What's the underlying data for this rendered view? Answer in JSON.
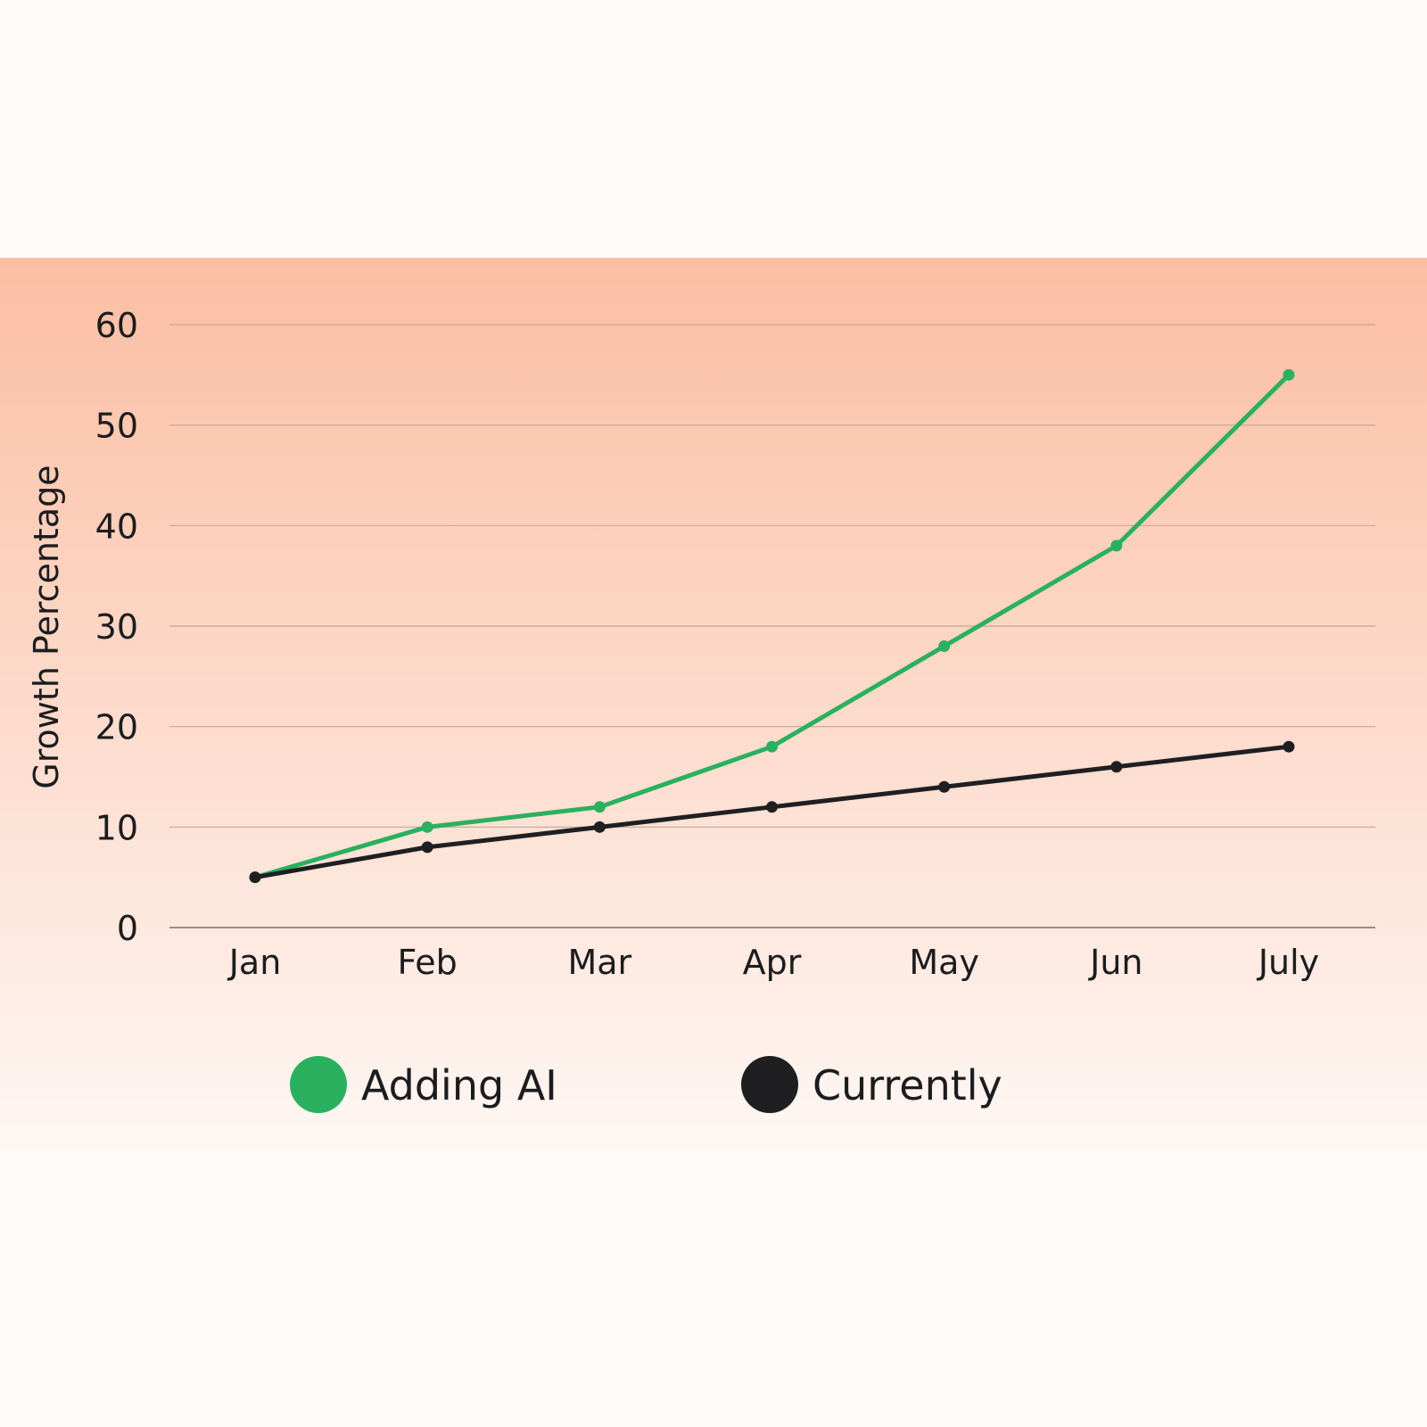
{
  "chart_data": {
    "type": "line",
    "categories": [
      "Jan",
      "Feb",
      "Mar",
      "Apr",
      "May",
      "Jun",
      "July"
    ],
    "series": [
      {
        "name": "Adding AI",
        "color": "#2bb05f",
        "values": [
          5,
          10,
          12,
          18,
          28,
          38,
          55
        ]
      },
      {
        "name": "Currently",
        "color": "#1f1f22",
        "values": [
          5,
          8,
          10,
          12,
          14,
          16,
          18
        ]
      }
    ],
    "yticks": [
      "0",
      "10",
      "20",
      "30",
      "40",
      "50",
      "60"
    ],
    "ylim": [
      0,
      60
    ],
    "ylabel": "Growth Percentage",
    "xlabel": "",
    "grid": true,
    "legend_position": "bottom"
  },
  "colors": {
    "panel_top": "#fbbea2",
    "panel_bottom": "#fef7f4",
    "gridline": "#c9a595",
    "axis_line": "#7a6a64"
  }
}
